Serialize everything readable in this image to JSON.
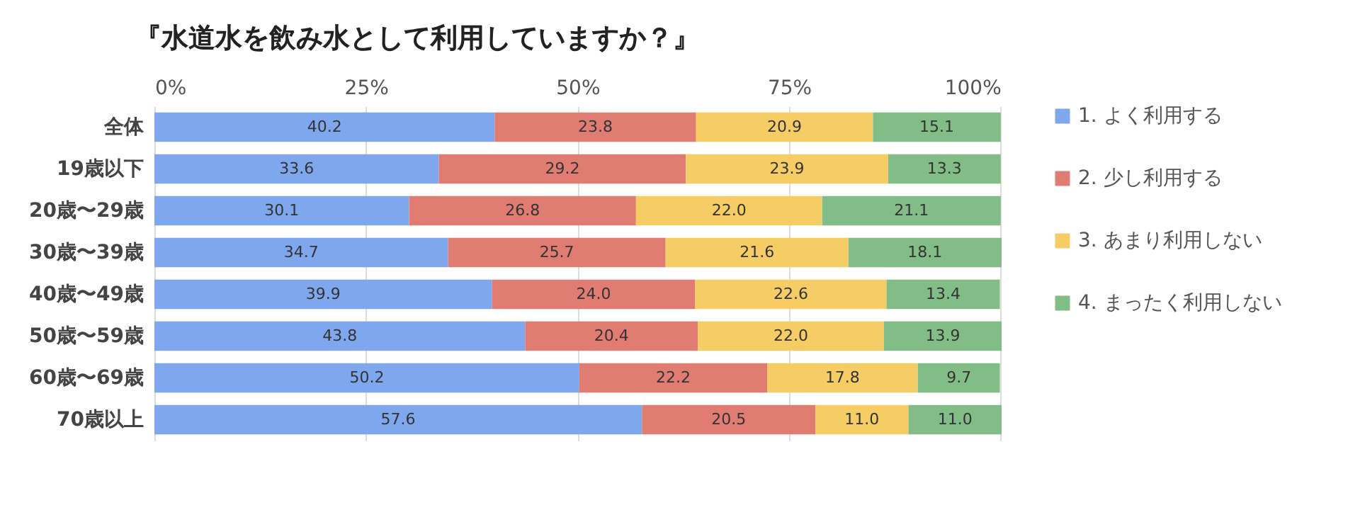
{
  "chart_data": {
    "type": "bar",
    "orientation": "horizontal",
    "stacked": true,
    "title": "『水道水を飲み水として利用していますか？』",
    "categories": [
      "全体",
      "19歳以下",
      "20歳〜29歳",
      "30歳〜39歳",
      "40歳〜49歳",
      "50歳〜59歳",
      "60歳〜69歳",
      "70歳以上"
    ],
    "series": [
      {
        "name": "1. よく利用する",
        "color": "#7ea7ee",
        "values": [
          40.2,
          33.6,
          30.1,
          34.7,
          39.9,
          43.8,
          50.2,
          57.6
        ],
        "value_labels": [
          "40.2",
          "33.6",
          "30.1",
          "34.7",
          "39.9",
          "43.8",
          "50.2",
          "57.6"
        ]
      },
      {
        "name": "2. 少し利用する",
        "color": "#e07c72",
        "values": [
          23.8,
          29.2,
          26.8,
          25.7,
          24.0,
          20.4,
          22.2,
          20.5
        ],
        "value_labels": [
          "23.8",
          "29.2",
          "26.8",
          "25.7",
          "24.0",
          "20.4",
          "22.2",
          "20.5"
        ]
      },
      {
        "name": "3. あまり利用しない",
        "color": "#f6cd65",
        "values": [
          20.9,
          23.9,
          22.0,
          21.6,
          22.6,
          22.0,
          17.8,
          11.0
        ],
        "value_labels": [
          "20.9",
          "23.9",
          "22.0",
          "21.6",
          "22.6",
          "22.0",
          "17.8",
          "11.0"
        ]
      },
      {
        "name": "4. まったく利用しない",
        "color": "#82bd88",
        "values": [
          15.1,
          13.3,
          21.1,
          18.1,
          13.4,
          13.9,
          9.7,
          11.0
        ],
        "value_labels": [
          "15.1",
          "13.3",
          "21.1",
          "18.1",
          "13.4",
          "13.9",
          "9.7",
          "11.0"
        ]
      }
    ],
    "xlim": [
      0,
      100.1
    ],
    "xticks": [
      {
        "value": 0,
        "label": "0%"
      },
      {
        "value": 25,
        "label": "25%"
      },
      {
        "value": 50,
        "label": "50%"
      },
      {
        "value": 75,
        "label": "75%"
      },
      {
        "value": 100,
        "label": "100%"
      }
    ],
    "grid": "x",
    "legend": "right"
  }
}
